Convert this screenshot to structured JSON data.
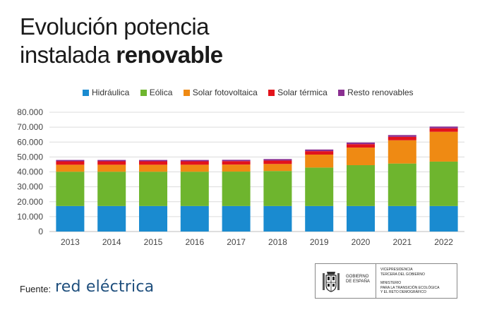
{
  "title": {
    "line1": "Evolución potencia",
    "line2_regular": "instalada ",
    "line2_bold": "renovable"
  },
  "footer": {
    "label": "Fuente:",
    "brand": "red eléctrica"
  },
  "government": {
    "name_line1": "GOBIERNO",
    "name_line2": "DE ESPAÑA",
    "vp_line1": "VICEPRESIDENCIA",
    "vp_line2": "TERCERA DEL GOBIERNO",
    "min_line1": "MINISTERIO",
    "min_line2": "PARA LA TRANSICIÓN ECOLÓGICA",
    "min_line3": "Y EL RETO DEMOGRÁFICO"
  },
  "colors": {
    "hidraulica": "#1a8bd0",
    "eolica": "#6eb52e",
    "solar_fotovoltaica": "#ef8a13",
    "solar_termica": "#e3131b",
    "resto": "#8a2f91"
  },
  "chart_data": {
    "type": "bar",
    "stacked": true,
    "categories": [
      "2013",
      "2014",
      "2015",
      "2016",
      "2017",
      "2018",
      "2019",
      "2020",
      "2021",
      "2022"
    ],
    "series": [
      {
        "name": "Hidráulica",
        "color": "#1a8bd0",
        "values": [
          17100,
          17100,
          17100,
          17100,
          17100,
          17100,
          17100,
          17100,
          17100,
          17100
        ]
      },
      {
        "name": "Eólica",
        "color": "#6eb52e",
        "values": [
          23000,
          23000,
          23000,
          23000,
          23100,
          23500,
          25800,
          27400,
          28500,
          29800
        ]
      },
      {
        "name": "Solar fotovoltaica",
        "color": "#ef8a13",
        "values": [
          4700,
          4700,
          4700,
          4700,
          4700,
          4700,
          8700,
          11800,
          15600,
          20000
        ]
      },
      {
        "name": "Solar térmica",
        "color": "#e3131b",
        "values": [
          2300,
          2300,
          2300,
          2300,
          2300,
          2300,
          2300,
          2300,
          2300,
          2300
        ]
      },
      {
        "name": "Resto renovables",
        "color": "#8a2f91",
        "values": [
          900,
          900,
          900,
          900,
          900,
          1000,
          1100,
          1100,
          1200,
          1200
        ]
      }
    ],
    "yticks": [
      "0",
      "10.000",
      "20.000",
      "30.000",
      "40.000",
      "50.000",
      "60.000",
      "70.000",
      "80.000"
    ],
    "ylim": [
      0,
      80000
    ],
    "grid": true,
    "legend_position": "top"
  }
}
